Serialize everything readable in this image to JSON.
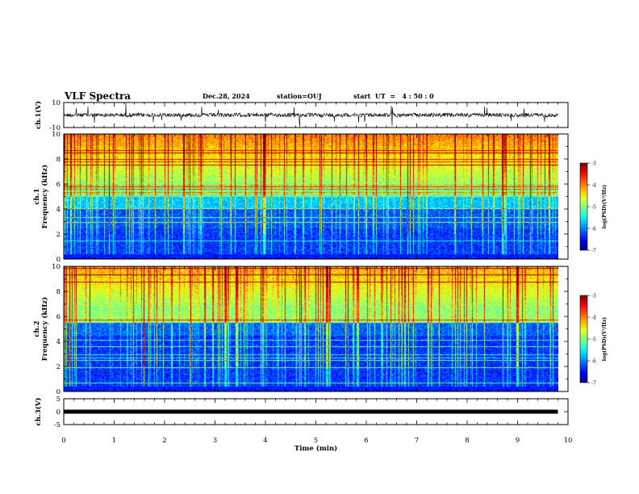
{
  "header": {
    "title": "VLF Spectra",
    "date": "Dec.28, 2024",
    "station": "station=OUJ",
    "start_ut": "start  UT  =   4 : 50 : 0"
  },
  "chart_data": [
    {
      "type": "line",
      "id": "ch1-waveform",
      "ylabel": "ch.1(V)",
      "ylim": [
        -10,
        10
      ],
      "yticks": [
        "10",
        "-10"
      ],
      "xlim": [
        0,
        10
      ],
      "data_end_min": 9.8
    },
    {
      "type": "heatmap",
      "id": "ch1-spectrogram",
      "ylabel": "ch.1\nFrequency (kHz)",
      "ylabel_lines": [
        "ch.1",
        "Frequency (kHz)"
      ],
      "ylim": [
        0,
        10
      ],
      "yticks": [
        "0",
        "2",
        "4",
        "6",
        "8",
        "10"
      ],
      "xlim": [
        0,
        10
      ],
      "data_end_min": 9.8,
      "colorbar": {
        "label": "log(PSD)(V²/Hz)",
        "range": [
          -7,
          -3
        ],
        "ticks": [
          "-3",
          "-4",
          "-5",
          "-6",
          "-7"
        ]
      }
    },
    {
      "type": "heatmap",
      "id": "ch2-spectrogram",
      "ylabel": "ch.2\nFrequency (kHz)",
      "ylabel_lines": [
        "ch.2",
        "Frequency (kHz)"
      ],
      "ylim": [
        0,
        10
      ],
      "yticks": [
        "0",
        "2",
        "4",
        "6",
        "8",
        "10"
      ],
      "xlim": [
        0,
        10
      ],
      "data_end_min": 9.8,
      "colorbar": {
        "label": "log(PSD)(V²/Hz)",
        "range": [
          -7,
          -3
        ],
        "ticks": [
          "-3",
          "-4",
          "-5",
          "-6",
          "-7"
        ]
      }
    },
    {
      "type": "line",
      "id": "ch3-waveform",
      "ylabel": "ch.3(V)",
      "ylim": [
        -5,
        5
      ],
      "yticks": [
        "5",
        "0",
        "-5"
      ],
      "xlim": [
        0,
        10
      ],
      "data_end_min": 9.8
    }
  ],
  "xaxis": {
    "label": "Time  (min)",
    "ticks": [
      "0",
      "1",
      "2",
      "3",
      "4",
      "5",
      "6",
      "7",
      "8",
      "9",
      "10"
    ]
  },
  "colors": {
    "low": "#000080",
    "mid": "#00c8a0",
    "high": "#ff0000"
  }
}
